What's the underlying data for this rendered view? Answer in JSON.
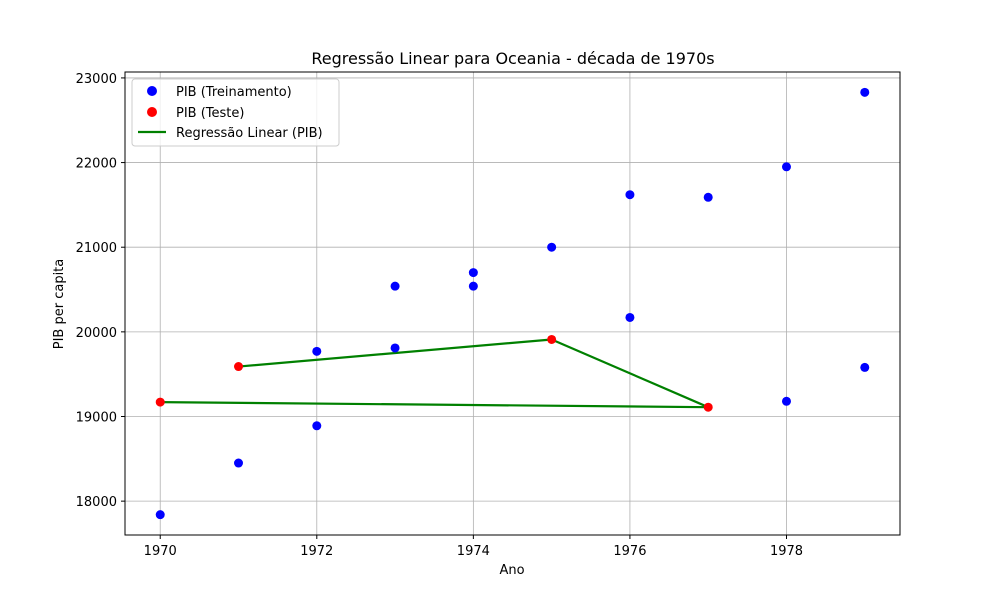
{
  "chart_data": {
    "type": "scatter",
    "title": "Regressão Linear para Oceania - década de 1970s",
    "xlabel": "Ano",
    "ylabel": "PIB per capita",
    "xlim": [
      1969.55,
      1979.45
    ],
    "ylim": [
      17600,
      23070
    ],
    "xticks": [
      1970,
      1972,
      1974,
      1976,
      1978
    ],
    "yticks": [
      18000,
      19000,
      20000,
      21000,
      22000,
      23000
    ],
    "grid": true,
    "legend_position": "top-left",
    "series": [
      {
        "name": "PIB (Treinamento)",
        "kind": "scatter",
        "color": "#0000ff",
        "points": [
          {
            "x": 1970,
            "y": 17840
          },
          {
            "x": 1971,
            "y": 18450
          },
          {
            "x": 1972,
            "y": 18890
          },
          {
            "x": 1972,
            "y": 19770
          },
          {
            "x": 1973,
            "y": 19810
          },
          {
            "x": 1973,
            "y": 20540
          },
          {
            "x": 1974,
            "y": 20540
          },
          {
            "x": 1974,
            "y": 20700
          },
          {
            "x": 1975,
            "y": 21000
          },
          {
            "x": 1976,
            "y": 20170
          },
          {
            "x": 1976,
            "y": 21620
          },
          {
            "x": 1977,
            "y": 21590
          },
          {
            "x": 1978,
            "y": 21950
          },
          {
            "x": 1978,
            "y": 19180
          },
          {
            "x": 1979,
            "y": 22830
          },
          {
            "x": 1979,
            "y": 19580
          }
        ]
      },
      {
        "name": "PIB (Teste)",
        "kind": "scatter",
        "color": "#ff0000",
        "points": [
          {
            "x": 1970,
            "y": 19170
          },
          {
            "x": 1971,
            "y": 19590
          },
          {
            "x": 1975,
            "y": 19910
          },
          {
            "x": 1977,
            "y": 19110
          }
        ]
      },
      {
        "name": "Regressão Linear (PIB)",
        "kind": "line",
        "color": "#008000",
        "points": [
          {
            "x": 1971,
            "y": 19590
          },
          {
            "x": 1975,
            "y": 19910
          },
          {
            "x": 1977,
            "y": 19110
          },
          {
            "x": 1970,
            "y": 19170
          }
        ]
      }
    ]
  }
}
